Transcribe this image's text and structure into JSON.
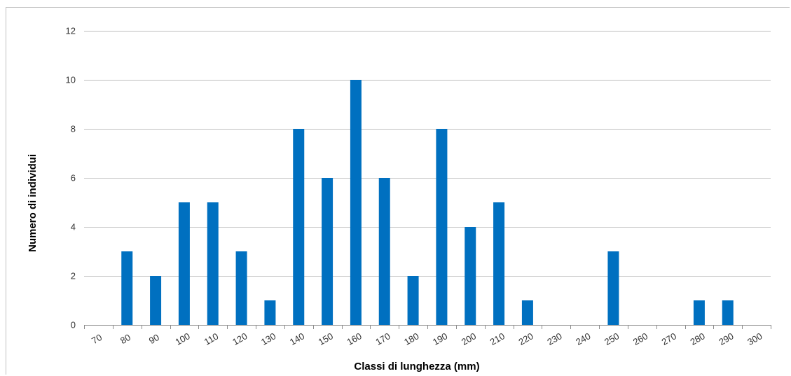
{
  "chart_data": {
    "type": "bar",
    "title": "",
    "xlabel": "Classi di lunghezza (mm)",
    "ylabel": "Numero di individui",
    "categories": [
      "70",
      "80",
      "90",
      "100",
      "110",
      "120",
      "130",
      "140",
      "150",
      "160",
      "170",
      "180",
      "190",
      "200",
      "210",
      "220",
      "230",
      "240",
      "250",
      "260",
      "270",
      "280",
      "290",
      "300"
    ],
    "values": [
      0,
      3,
      2,
      5,
      5,
      3,
      1,
      8,
      6,
      10,
      6,
      2,
      8,
      4,
      5,
      1,
      0,
      0,
      3,
      0,
      0,
      1,
      1,
      0
    ],
    "ylim": [
      0,
      12
    ],
    "yticks": [
      0,
      2,
      4,
      6,
      8,
      10,
      12
    ],
    "grid": true,
    "legend": "none",
    "bar_color": "#0070c0",
    "grid_color": "#bfbfbf"
  }
}
